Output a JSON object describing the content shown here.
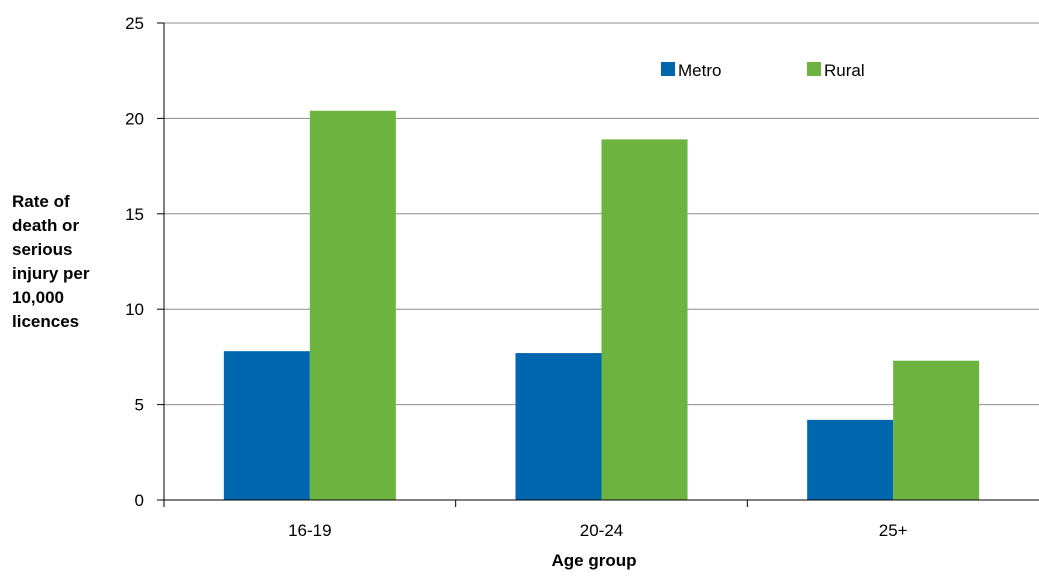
{
  "chart_data": {
    "type": "bar",
    "categories": [
      "16-19",
      "20-24",
      "25+"
    ],
    "series": [
      {
        "name": "Metro",
        "values": [
          7.8,
          7.7,
          4.2
        ],
        "color": "#0066ad"
      },
      {
        "name": "Rural",
        "values": [
          20.4,
          18.9,
          7.3
        ],
        "color": "#6db33f"
      }
    ],
    "xlabel": "Age group",
    "ylabel_lines": [
      "Rate of",
      "death or",
      "serious",
      "injury per",
      "10,000",
      "licences"
    ],
    "ylim": [
      0,
      25
    ],
    "yticks": [
      "0",
      "5",
      "10",
      "15",
      "20",
      "25"
    ],
    "gridlines": true,
    "legend_position": "top-right"
  }
}
